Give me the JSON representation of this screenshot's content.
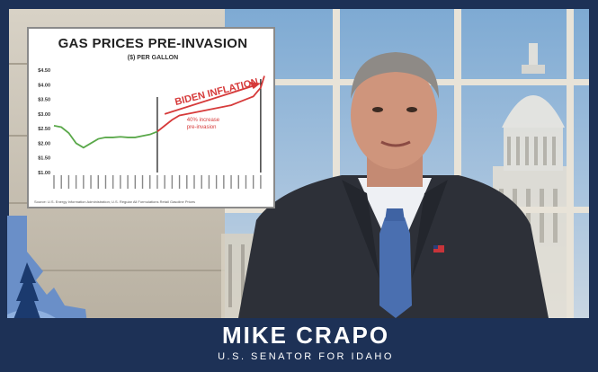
{
  "chart": {
    "title": "GAS PRICES PRE-INVASION",
    "subtitle": "($) PER GALLON",
    "source": "Source: U.S. Energy Information Administration; U.S. Regular All Formulations Retail Gasoline Prices",
    "annotation_arrow": "BIDEN INFLATION",
    "annotation_note_line1": "40% increase",
    "annotation_note_line2": "pre-invasion"
  },
  "chart_data": {
    "type": "line",
    "title": "GAS PRICES PRE-INVASION",
    "ylabel": "($) PER GALLON",
    "ylim": [
      1.0,
      4.5
    ],
    "yticks": [
      "$1.00",
      "$1.50",
      "$2.00",
      "$2.50",
      "$3.00",
      "$3.50",
      "$4.00",
      "$4.50"
    ],
    "series": [
      {
        "color": "#5aa84a",
        "x": [
          0,
          2,
          4,
          6,
          8,
          10,
          12,
          14,
          16,
          18,
          20,
          22,
          24,
          26,
          28
        ],
        "values": [
          2.6,
          2.55,
          2.35,
          2.0,
          1.85,
          2.0,
          2.15,
          2.2,
          2.2,
          2.22,
          2.2,
          2.2,
          2.25,
          2.3,
          2.4
        ]
      },
      {
        "color": "#d63a3a",
        "x": [
          28,
          30,
          32,
          34,
          36,
          38,
          40,
          42,
          44,
          46,
          48,
          50,
          52,
          54,
          56,
          57
        ],
        "values": [
          2.4,
          2.6,
          2.8,
          2.95,
          3.0,
          3.05,
          3.1,
          3.15,
          3.2,
          3.25,
          3.3,
          3.4,
          3.5,
          3.6,
          3.9,
          4.3
        ]
      }
    ],
    "divider_x": 28
  },
  "banner": {
    "name": "MIKE CRAPO",
    "title": "U.S. SENATOR FOR IDAHO"
  },
  "colors": {
    "banner_bg": "#1d3156",
    "red": "#d63a3a",
    "green": "#5aa84a"
  }
}
